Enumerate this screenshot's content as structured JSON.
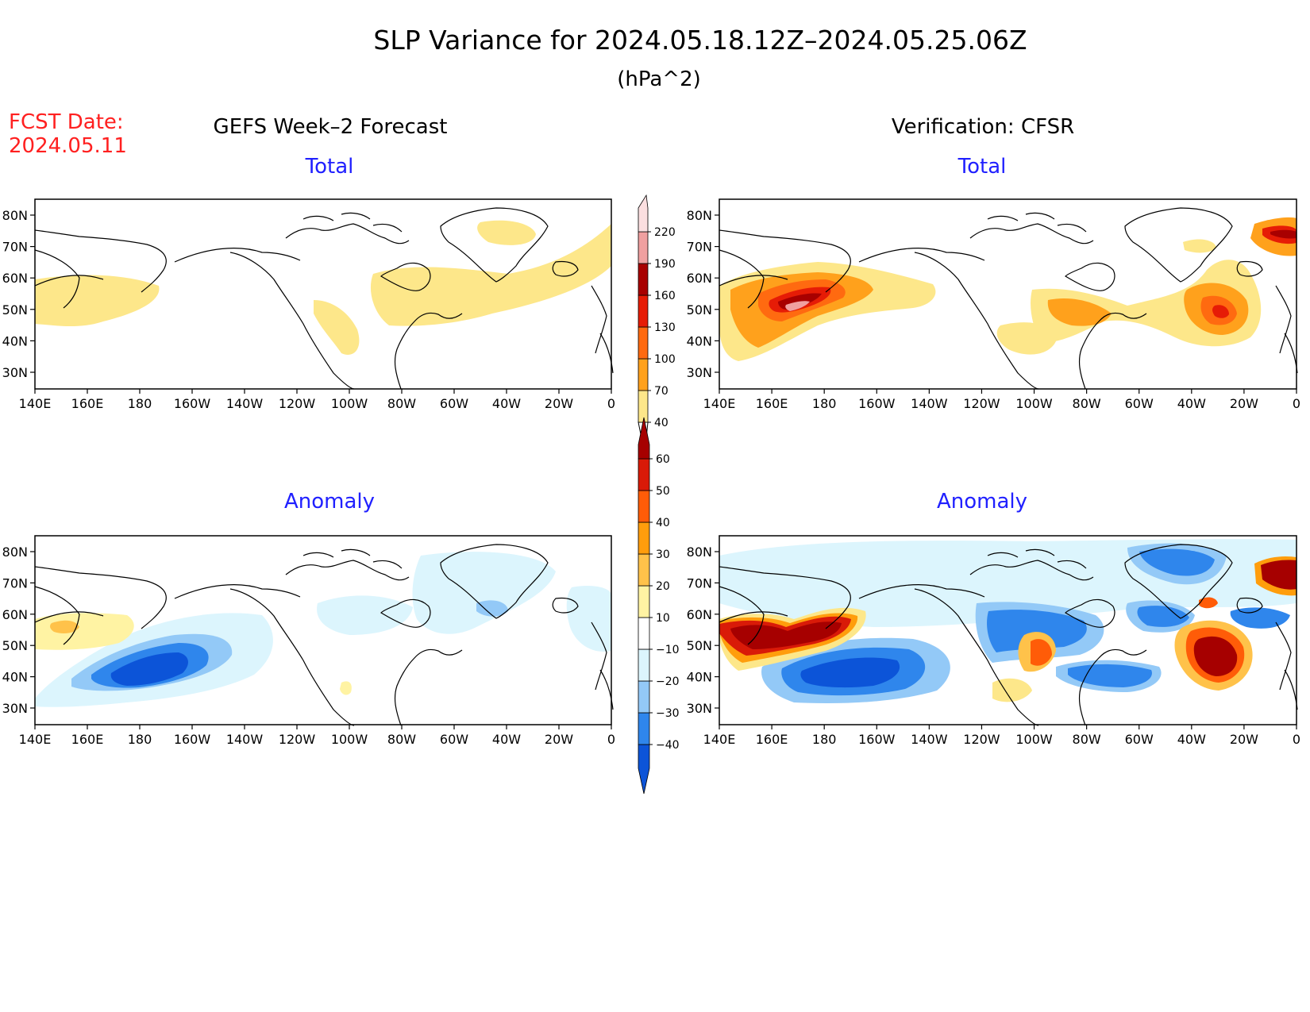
{
  "title": "SLP Variance for 2024.05.18.12Z–2024.05.25.06Z",
  "units": "(hPa^2)",
  "fcst_label": "FCST Date:",
  "fcst_date": "2024.05.11",
  "left_header": "GEFS Week–2 Forecast",
  "right_header": "Verification: CFSR",
  "panels": [
    {
      "id": "fc-total",
      "subtitle": "Total"
    },
    {
      "id": "ver-total",
      "subtitle": "Total"
    },
    {
      "id": "fc-anom",
      "subtitle": "Anomaly"
    },
    {
      "id": "ver-anom",
      "subtitle": "Anomaly"
    }
  ],
  "lat_labels": [
    "80N",
    "70N",
    "60N",
    "50N",
    "40N",
    "30N"
  ],
  "lon_labels": [
    "140E",
    "160E",
    "180",
    "160W",
    "140W",
    "120W",
    "100W",
    "80W",
    "60W",
    "40W",
    "20W",
    "0"
  ],
  "total_scale": {
    "labels": [
      "40",
      "70",
      "100",
      "130",
      "160",
      "190",
      "220"
    ],
    "colors": [
      "#fde78a",
      "#ffa11c",
      "#ff6a10",
      "#e61c06",
      "#a80000",
      "#f0a0a0",
      "#fbdfe0"
    ]
  },
  "anomaly_scale": {
    "labels": [
      "−40",
      "−30",
      "−20",
      "−10",
      "10",
      "20",
      "30",
      "40",
      "50",
      "60"
    ],
    "colors": [
      "#0c54d8",
      "#2f86ec",
      "#93c9f7",
      "#dcf5fd",
      "#ffffff",
      "#fff3a3",
      "#ffc24a",
      "#ff9d0c",
      "#ff5c08",
      "#d91a08",
      "#a60000"
    ]
  },
  "colors": {
    "title": "#000000",
    "fcst": "#ff2020",
    "subtitle": "#2020ff"
  }
}
